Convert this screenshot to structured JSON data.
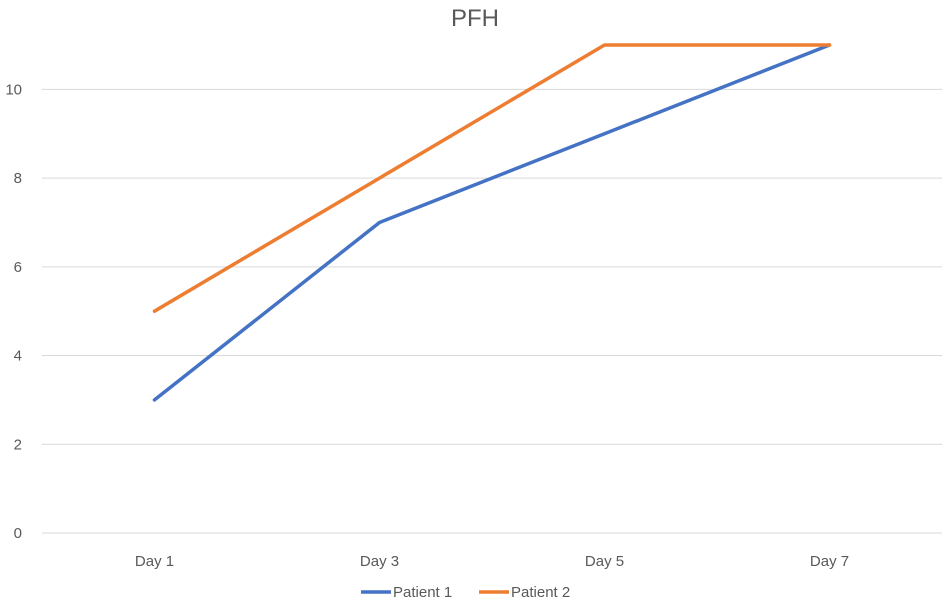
{
  "chart_data": {
    "type": "line",
    "title": "PFH",
    "xlabel": "",
    "ylabel": "",
    "categories": [
      "Day 1",
      "Day 3",
      "Day 5",
      "Day 7"
    ],
    "ylim": [
      0,
      11
    ],
    "yticks": [
      0,
      2,
      4,
      6,
      8,
      10
    ],
    "grid": true,
    "legend_position": "bottom",
    "series": [
      {
        "name": "Patient 1",
        "values": [
          3,
          7,
          9,
          11
        ],
        "color": "#4472C4"
      },
      {
        "name": "Patient 2",
        "values": [
          5,
          8,
          11,
          11
        ],
        "color": "#ED7D31"
      }
    ]
  }
}
